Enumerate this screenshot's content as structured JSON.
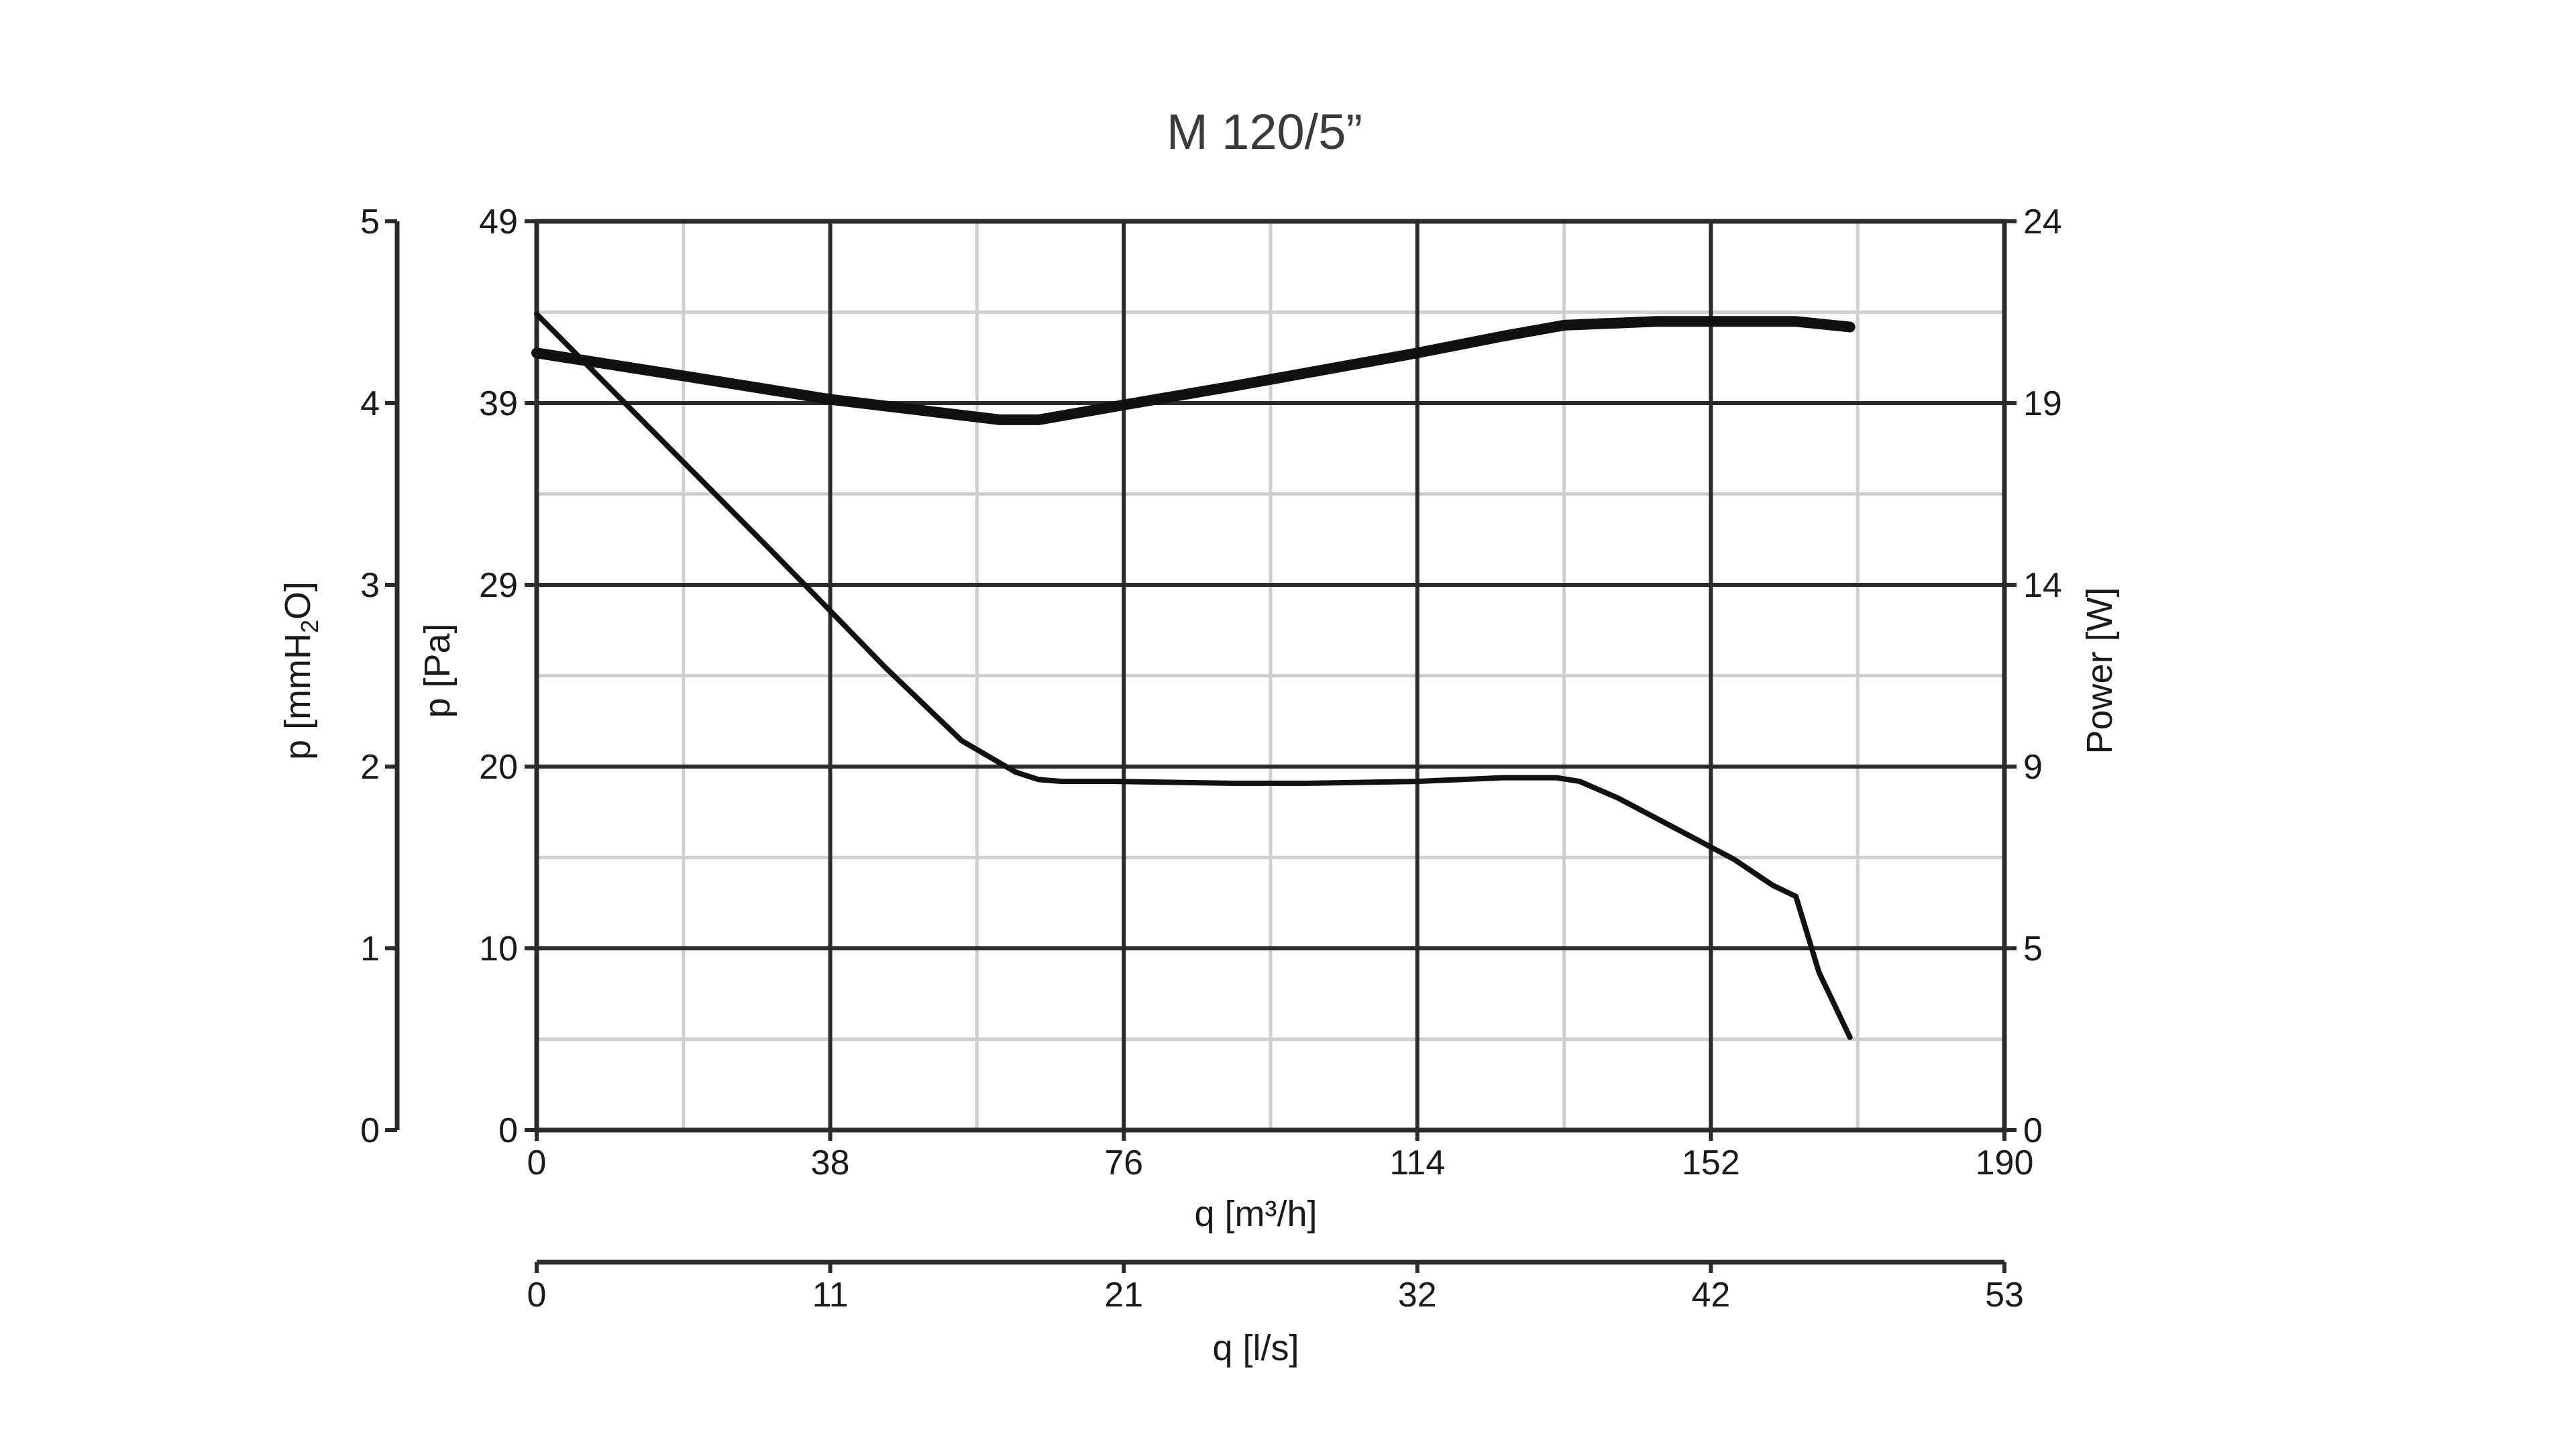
{
  "chart_data": {
    "type": "line",
    "title": "M 120/5”",
    "x_axes": {
      "primary": {
        "label": "q [m³/h]",
        "ticks": [
          "0",
          "38",
          "76",
          "114",
          "152",
          "190"
        ],
        "range": [
          0,
          190
        ]
      },
      "secondary": {
        "label": "q [l/s]",
        "ticks": [
          "0",
          "11",
          "21",
          "32",
          "42",
          "53"
        ]
      }
    },
    "y_axes": {
      "outer_left": {
        "label_main": "p [mmH",
        "label_sub": "2",
        "label_end": "O]",
        "ticks": [
          "0",
          "1",
          "2",
          "3",
          "4",
          "5"
        ]
      },
      "left": {
        "label": "p [Pa]",
        "ticks": [
          "0",
          "10",
          "20",
          "29",
          "39",
          "49"
        ],
        "range": [
          0,
          49
        ]
      },
      "right": {
        "label": "Power [W]",
        "ticks": [
          "0",
          "5",
          "9",
          "14",
          "19",
          "24"
        ],
        "range": [
          0,
          24
        ]
      }
    },
    "grid": true,
    "series": [
      {
        "axis": "left",
        "line_weight": "thin",
        "x": [
          0,
          10,
          20,
          30,
          38,
          45,
          55,
          62,
          65,
          68,
          75,
          90,
          100,
          114,
          125,
          132,
          135,
          140,
          150,
          155,
          160,
          163,
          166,
          170
        ],
        "y": [
          44.0,
          39.8,
          35.6,
          31.4,
          28.0,
          25.0,
          21.0,
          19.3,
          18.9,
          18.8,
          18.8,
          18.7,
          18.7,
          18.8,
          19.0,
          19.0,
          18.8,
          17.9,
          15.7,
          14.6,
          13.2,
          12.6,
          8.5,
          5.0
        ]
      },
      {
        "axis": "left",
        "line_weight": "thick",
        "x": [
          0,
          20,
          38,
          50,
          60,
          65,
          76,
          90,
          114,
          125,
          133,
          145,
          155,
          163,
          170
        ],
        "y": [
          41.9,
          40.6,
          39.4,
          38.8,
          38.3,
          38.3,
          39.1,
          40.1,
          41.9,
          42.8,
          43.4,
          43.6,
          43.6,
          43.6,
          43.3
        ]
      }
    ]
  }
}
